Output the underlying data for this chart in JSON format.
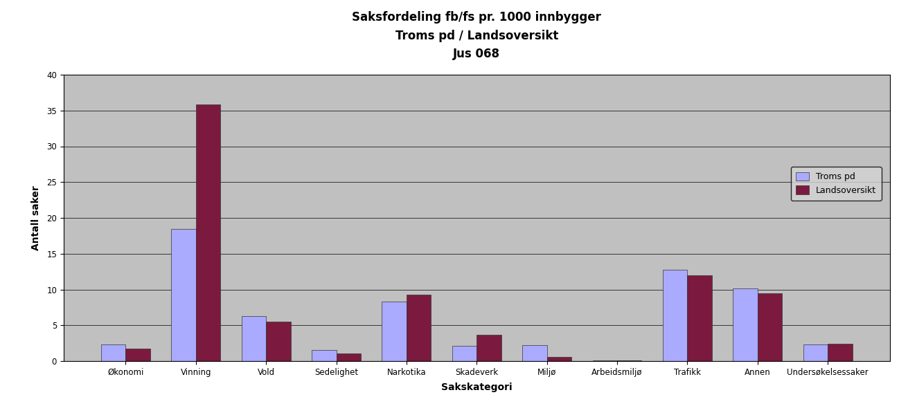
{
  "title_line1": "Saksfordeling fb/fs pr. 1000 innbygger",
  "title_line2": "Troms pd / Landsoversikt",
  "title_line3": "Jus 068",
  "xlabel": "Sakskategori",
  "ylabel": "Antall saker",
  "categories": [
    "Økonomi",
    "Vinning",
    "Vold",
    "Sedelighet",
    "Narkotika",
    "Skadeverk",
    "Miljø",
    "Arbeidsmiljø",
    "Trafikk",
    "Annen",
    "Undersøkelsessaker"
  ],
  "troms_pd": [
    2.3,
    18.5,
    6.3,
    1.5,
    8.3,
    2.1,
    2.2,
    0.1,
    12.8,
    10.1,
    2.3
  ],
  "landsoversikt": [
    1.7,
    35.8,
    5.5,
    1.1,
    9.3,
    3.7,
    0.6,
    0.1,
    12.0,
    9.5,
    2.4
  ],
  "troms_color": "#aaaaff",
  "lands_color": "#7b1a3e",
  "ylim": [
    0,
    40
  ],
  "yticks": [
    0,
    5,
    10,
    15,
    20,
    25,
    30,
    35,
    40
  ],
  "plot_bg_color": "#c0c0c0",
  "fig_bg_color": "#ffffff",
  "legend_labels": [
    "Troms pd",
    "Landsoversikt"
  ],
  "bar_width": 0.35,
  "title_fontsize": 12,
  "axis_label_fontsize": 10,
  "tick_fontsize": 8.5
}
